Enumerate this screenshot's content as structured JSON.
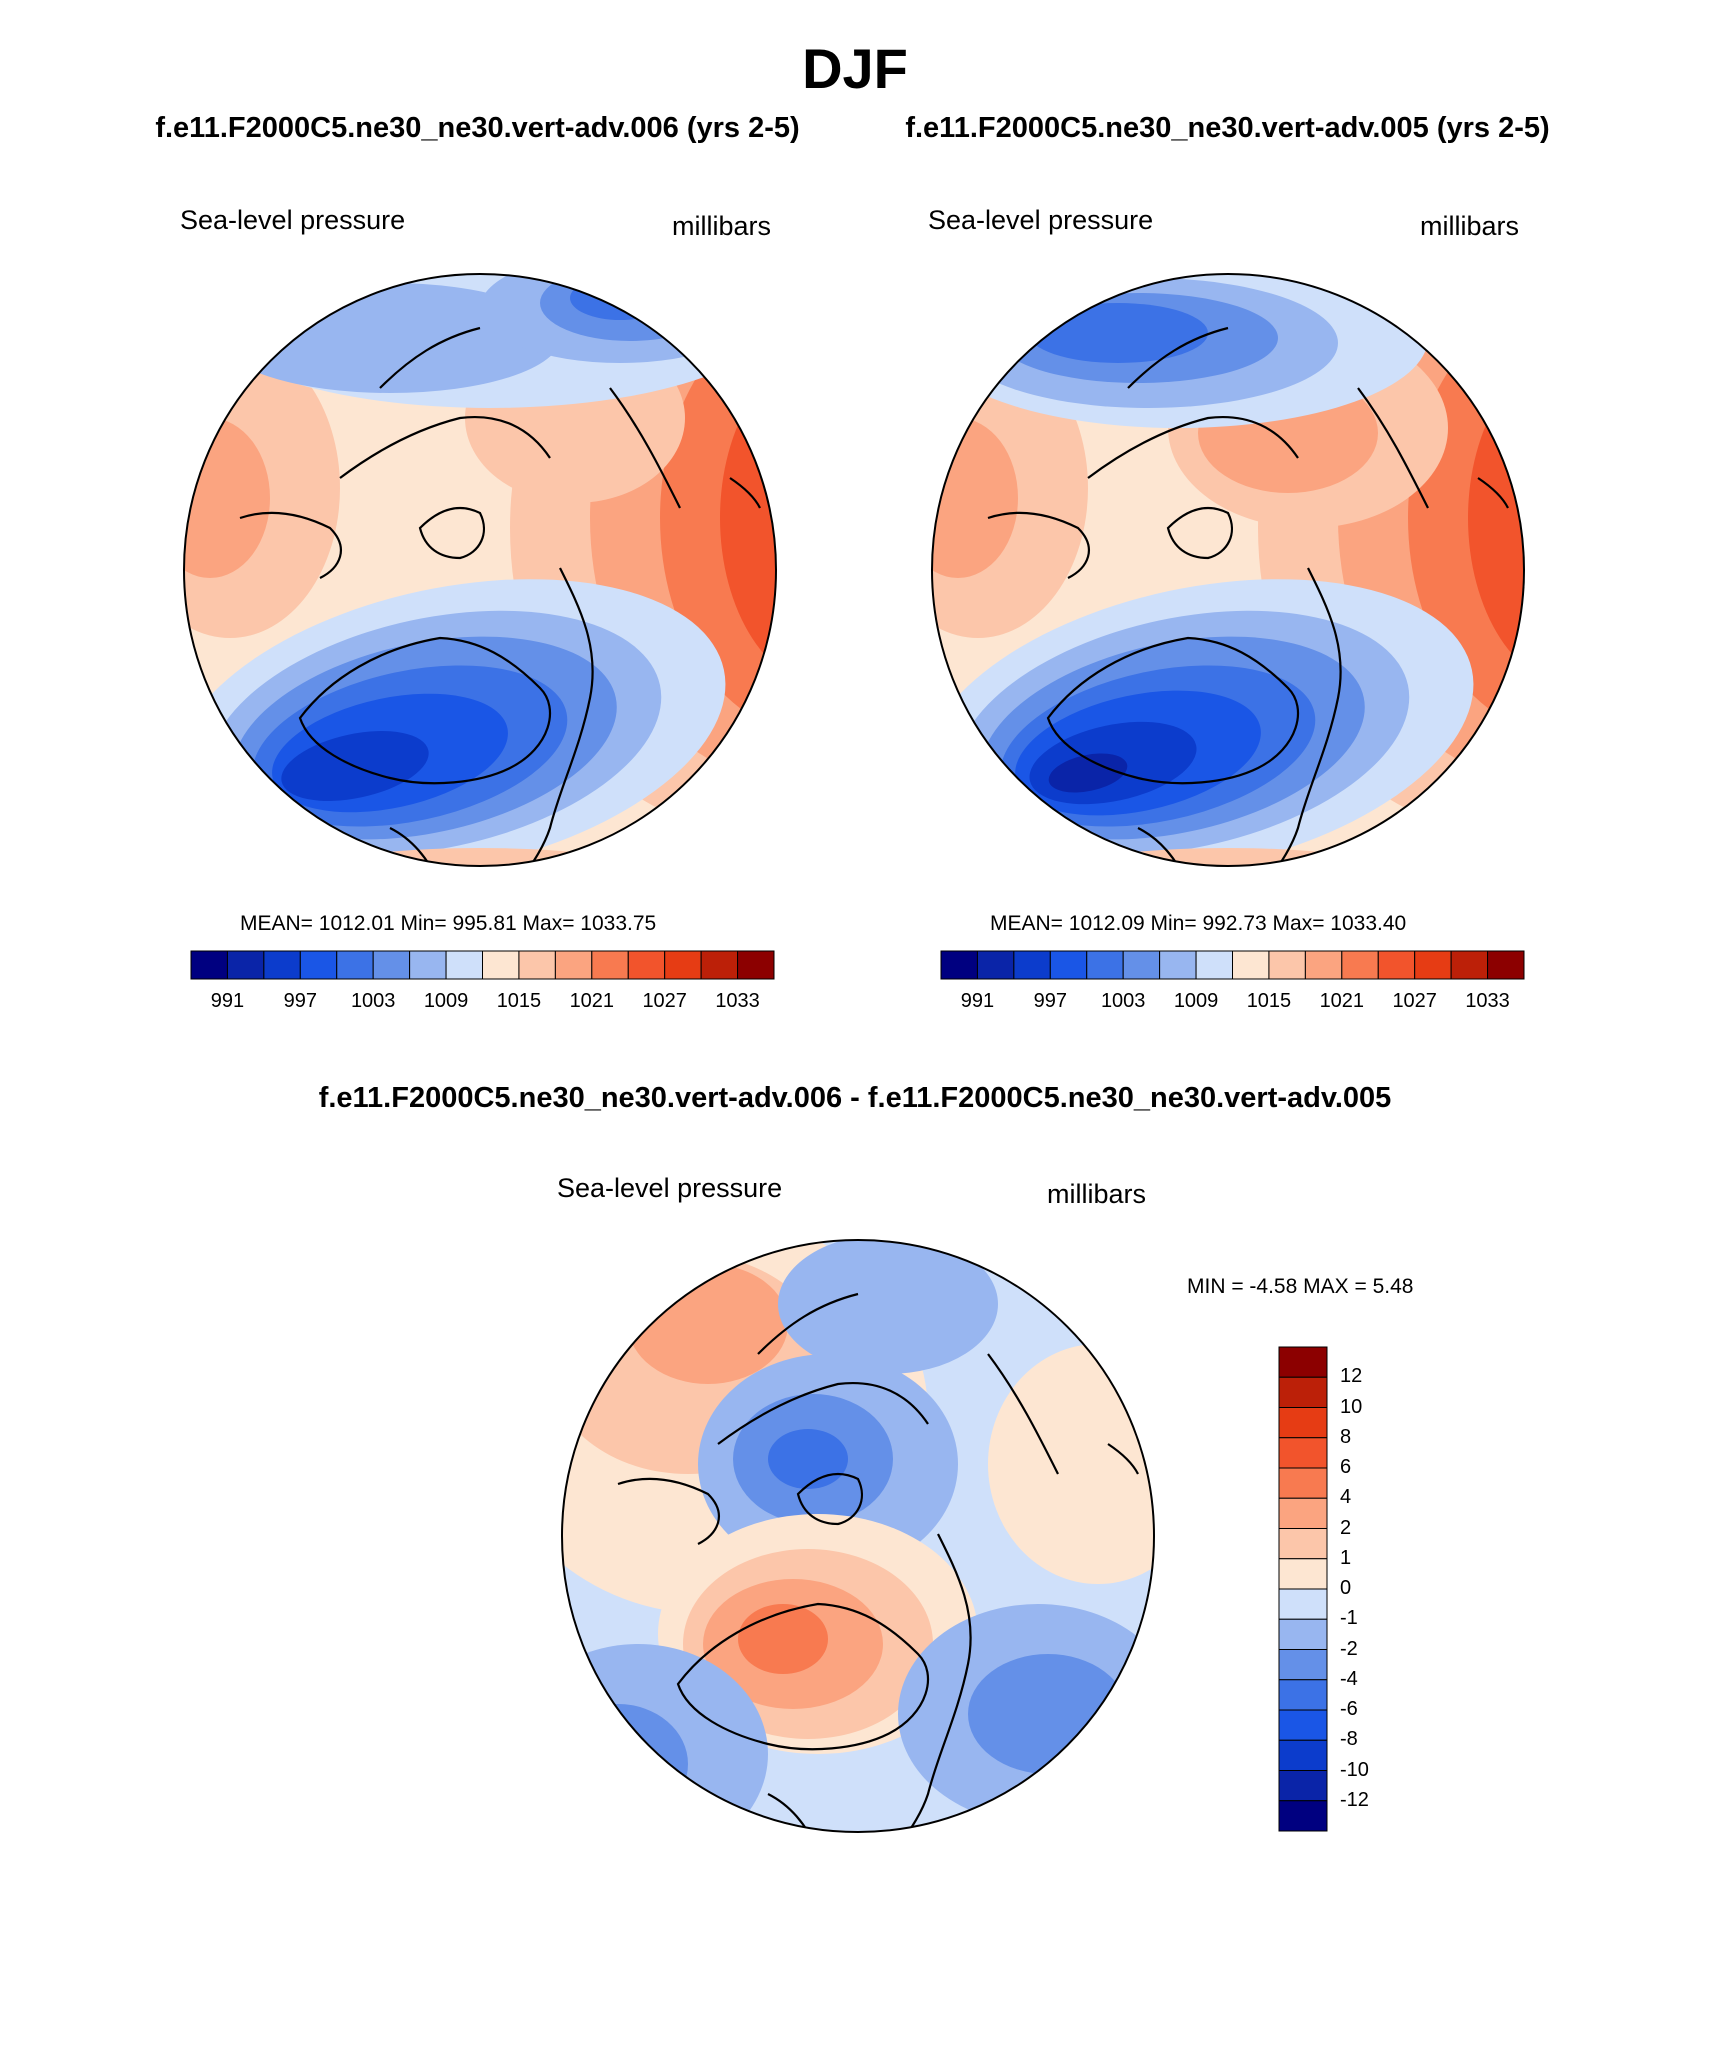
{
  "page": {
    "title": "DJF",
    "subtitle_left": "f.e11.F2000C5.ne30_ne30.vert-adv.006 (yrs 2-5)",
    "subtitle_right": "f.e11.F2000C5.ne30_ne30.vert-adv.005 (yrs 2-5)",
    "diff_title": "f.e11.F2000C5.ne30_ne30.vert-adv.006 - f.e11.F2000C5.ne30_ne30.vert-adv.005"
  },
  "chart_data": [
    {
      "type": "heatmap",
      "projection": "north-polar-stereographic",
      "variable": "Sea-level pressure",
      "units": "millibars",
      "stats": "MEAN= 1012.01  Min= 995.81  Max= 1033.75",
      "mean": 1012.01,
      "min": 995.81,
      "max": 1033.75,
      "colorbar": {
        "orientation": "horizontal",
        "levels": [
          991,
          994,
          997,
          1000,
          1003,
          1006,
          1009,
          1012,
          1015,
          1018,
          1021,
          1024,
          1027,
          1030,
          1033
        ],
        "tick_labels": [
          "991",
          "997",
          "1003",
          "1009",
          "1015",
          "1021",
          "1027",
          "1033"
        ],
        "colors": [
          "#000080",
          "#0a24a8",
          "#0c3ccc",
          "#1a56e6",
          "#3c72e6",
          "#6490e8",
          "#98b6f0",
          "#cfe0fa",
          "#fde6d2",
          "#fcc6aa",
          "#fba480",
          "#f87a50",
          "#f2542c",
          "#e63c14",
          "#bc2008",
          "#8c0000"
        ]
      }
    },
    {
      "type": "heatmap",
      "projection": "north-polar-stereographic",
      "variable": "Sea-level pressure",
      "units": "millibars",
      "stats": "MEAN= 1012.09  Min= 992.73  Max= 1033.40",
      "mean": 1012.09,
      "min": 992.73,
      "max": 1033.4,
      "colorbar": {
        "orientation": "horizontal",
        "levels": [
          991,
          994,
          997,
          1000,
          1003,
          1006,
          1009,
          1012,
          1015,
          1018,
          1021,
          1024,
          1027,
          1030,
          1033
        ],
        "tick_labels": [
          "991",
          "997",
          "1003",
          "1009",
          "1015",
          "1021",
          "1027",
          "1033"
        ],
        "colors": [
          "#000080",
          "#0a24a8",
          "#0c3ccc",
          "#1a56e6",
          "#3c72e6",
          "#6490e8",
          "#98b6f0",
          "#cfe0fa",
          "#fde6d2",
          "#fcc6aa",
          "#fba480",
          "#f87a50",
          "#f2542c",
          "#e63c14",
          "#bc2008",
          "#8c0000"
        ]
      }
    },
    {
      "type": "heatmap",
      "projection": "north-polar-stereographic",
      "variable": "Sea-level pressure",
      "units": "millibars",
      "stats": "MIN =  -4.58 MAX =   5.48",
      "min": -4.58,
      "max": 5.48,
      "colorbar": {
        "orientation": "vertical",
        "levels": [
          -12,
          -10,
          -8,
          -6,
          -4,
          -2,
          -1,
          0,
          1,
          2,
          4,
          6,
          8,
          10,
          12
        ],
        "tick_labels": [
          "12",
          "10",
          "8",
          "6",
          "4",
          "2",
          "1",
          "0",
          "-1",
          "-2",
          "-4",
          "-6",
          "-8",
          "-10",
          "-12"
        ],
        "colors": [
          "#000080",
          "#0a24a8",
          "#0c3ccc",
          "#1a56e6",
          "#3c72e6",
          "#6490e8",
          "#98b6f0",
          "#cfe0fa",
          "#fde6d2",
          "#fcc6aa",
          "#fba480",
          "#f87a50",
          "#f2542c",
          "#e63c14",
          "#bc2008",
          "#8c0000"
        ]
      }
    }
  ]
}
